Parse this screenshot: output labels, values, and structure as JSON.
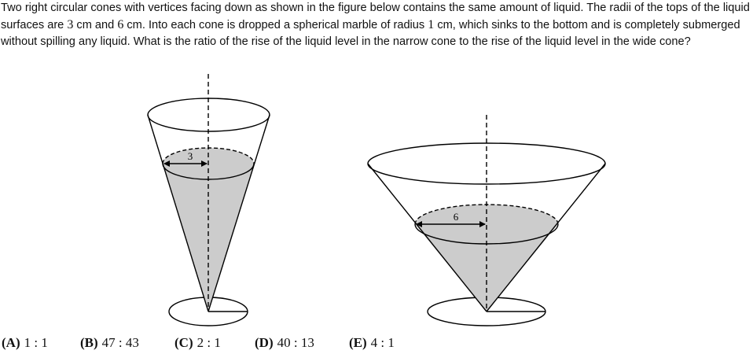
{
  "problem": {
    "segments": [
      {
        "type": "text",
        "value": "Two right circular cones with vertices facing down as shown in the figure below contains the same amount of liquid. The radii of the tops of the liquid surfaces are "
      },
      {
        "type": "math",
        "value": "3"
      },
      {
        "type": "text",
        "value": " cm and "
      },
      {
        "type": "math",
        "value": "6"
      },
      {
        "type": "text",
        "value": " cm. Into each cone is dropped a spherical marble of radius "
      },
      {
        "type": "math",
        "value": "1"
      },
      {
        "type": "text",
        "value": " cm, which sinks to the bottom and is completely submerged without spilling any liquid. What is the ratio of the rise of the liquid level in the narrow cone to the rise of the liquid level in the wide cone?"
      }
    ]
  },
  "figure": {
    "narrow_cone": {
      "radius_label": "3"
    },
    "wide_cone": {
      "radius_label": "6"
    },
    "liquid_color": "#cccccc",
    "line_color": "#000000"
  },
  "choices": [
    {
      "letter": "(A)",
      "value": "1 : 1"
    },
    {
      "letter": "(B)",
      "value": "47 : 43"
    },
    {
      "letter": "(C)",
      "value": "2 : 1"
    },
    {
      "letter": "(D)",
      "value": "40 : 13"
    },
    {
      "letter": "(E)",
      "value": "4 : 1"
    }
  ]
}
